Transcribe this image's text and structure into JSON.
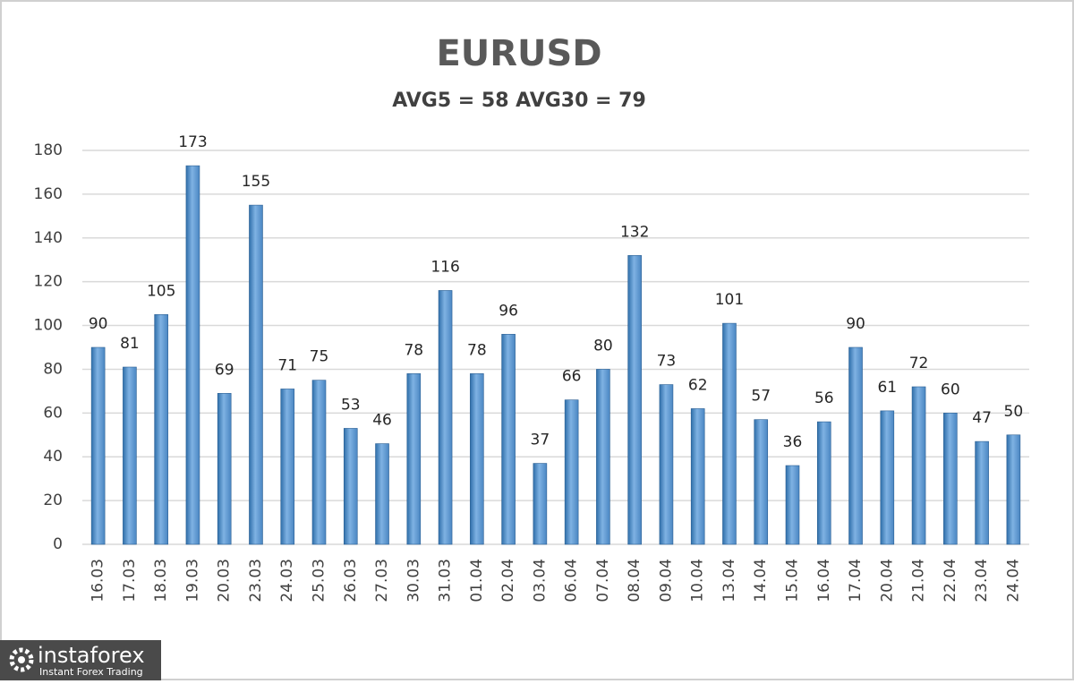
{
  "chart_data": {
    "type": "bar",
    "title": "EURUSD",
    "subtitle": "AVG5 = 58 AVG30 = 79",
    "categories": [
      "16.03",
      "17.03",
      "18.03",
      "19.03",
      "20.03",
      "23.03",
      "24.03",
      "25.03",
      "26.03",
      "27.03",
      "30.03",
      "31.03",
      "01.04",
      "02.04",
      "03.04",
      "06.04",
      "07.04",
      "08.04",
      "09.04",
      "10.04",
      "13.04",
      "14.04",
      "15.04",
      "16.04",
      "17.04",
      "20.04",
      "21.04",
      "22.04",
      "23.04",
      "24.04"
    ],
    "values": [
      90,
      81,
      105,
      173,
      69,
      155,
      71,
      75,
      53,
      46,
      78,
      116,
      78,
      96,
      37,
      66,
      80,
      132,
      73,
      62,
      101,
      57,
      36,
      56,
      90,
      61,
      72,
      60,
      47,
      50
    ],
    "color": "#5b9bd5",
    "ylim": [
      0,
      180
    ],
    "yticks": [
      0,
      20,
      40,
      60,
      80,
      100,
      120,
      140,
      160,
      180
    ],
    "grid": true
  },
  "logo": {
    "name": "instaforex",
    "tagline": "Instant Forex Trading"
  }
}
